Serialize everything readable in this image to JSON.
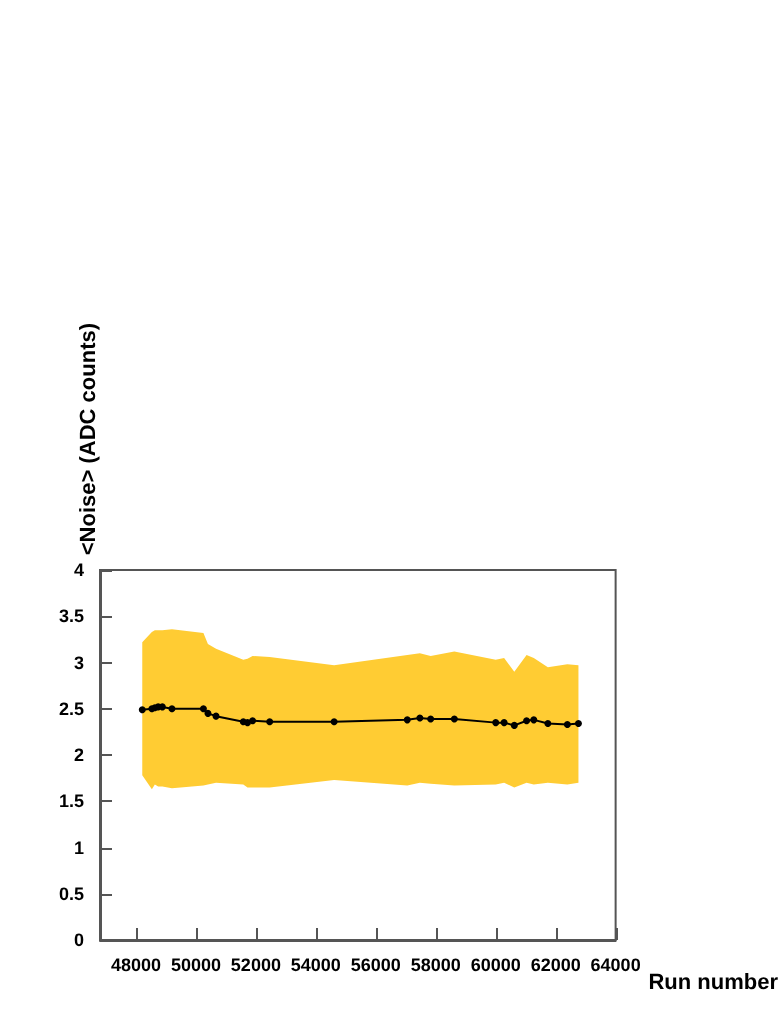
{
  "chart_data": {
    "type": "line",
    "xlabel": "Run number",
    "ylabel": "<Noise> (ADC counts)",
    "xlim": [
      46800,
      64000
    ],
    "xticks": [
      48000,
      50000,
      52000,
      54000,
      56000,
      58000,
      60000,
      62000,
      64000
    ],
    "ylim": [
      0,
      4
    ],
    "yticks": [
      0,
      0.5,
      1,
      1.5,
      2,
      2.5,
      3,
      3.5,
      4
    ],
    "grid": false,
    "marker": "circle",
    "line_style": "solid",
    "series": [
      {
        "color": "#000000",
        "x": [
          48210,
          48530,
          48630,
          48740,
          48880,
          49200,
          50250,
          50400,
          50670,
          51580,
          51720,
          51890,
          52460,
          54610,
          57050,
          57470,
          57830,
          58620,
          60000,
          60280,
          60620,
          61030,
          61270,
          61740,
          62390,
          62760
        ],
        "values": [
          2.49,
          2.5,
          2.51,
          2.52,
          2.52,
          2.5,
          2.5,
          2.45,
          2.42,
          2.36,
          2.35,
          2.37,
          2.36,
          2.36,
          2.38,
          2.4,
          2.39,
          2.39,
          2.35,
          2.35,
          2.32,
          2.37,
          2.38,
          2.34,
          2.33,
          2.34
        ],
        "upper": [
          3.22,
          3.33,
          3.35,
          3.35,
          3.35,
          3.36,
          3.32,
          3.2,
          3.15,
          3.03,
          3.04,
          3.07,
          3.06,
          2.97,
          3.08,
          3.1,
          3.07,
          3.12,
          3.03,
          3.05,
          2.9,
          3.08,
          3.05,
          2.95,
          2.98,
          2.97
        ],
        "lower": [
          1.78,
          1.63,
          1.68,
          1.66,
          1.66,
          1.64,
          1.67,
          1.68,
          1.7,
          1.68,
          1.65,
          1.65,
          1.65,
          1.73,
          1.67,
          1.7,
          1.69,
          1.67,
          1.68,
          1.7,
          1.65,
          1.7,
          1.68,
          1.7,
          1.68,
          1.7
        ]
      }
    ]
  }
}
